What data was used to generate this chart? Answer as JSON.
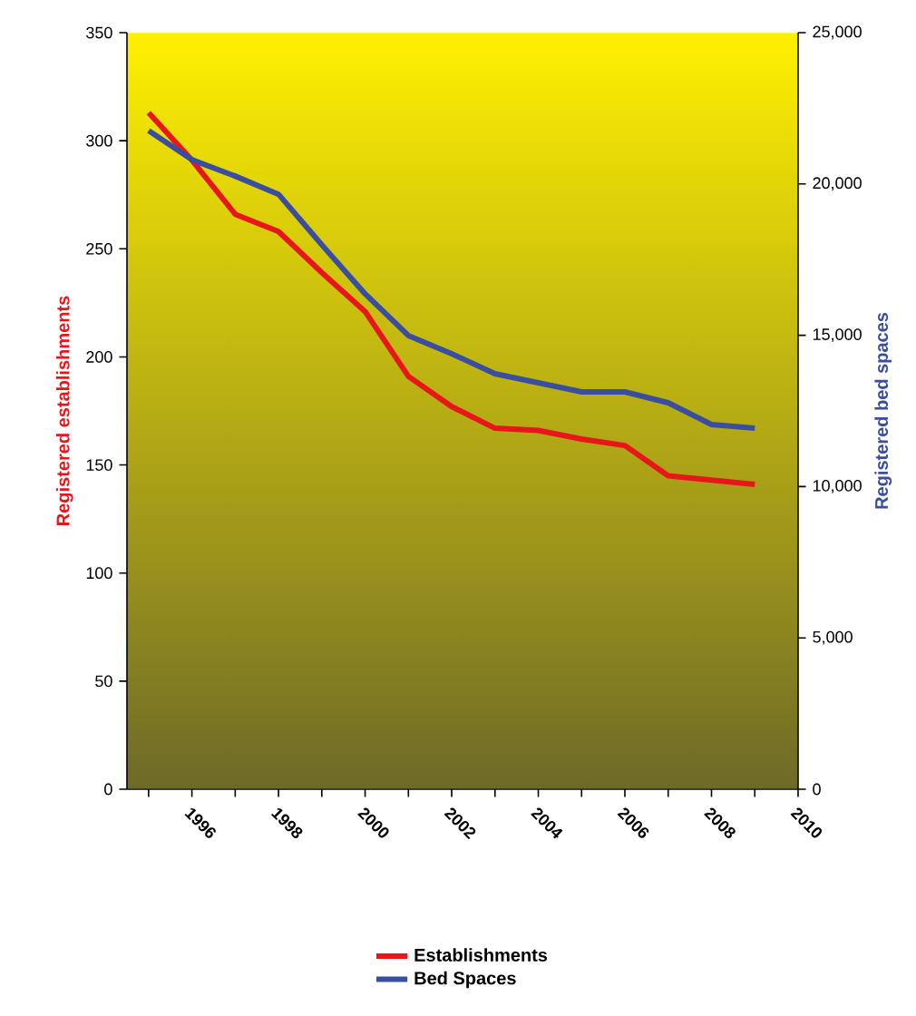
{
  "chart_data": {
    "type": "line",
    "x": [
      1995,
      1996,
      1997,
      1998,
      1999,
      2000,
      2001,
      2002,
      2003,
      2004,
      2005,
      2006,
      2007,
      2008,
      2009
    ],
    "series": [
      {
        "name": "Establishments",
        "color": "#e8151b",
        "values": [
          313,
          291,
          266,
          258,
          239,
          221,
          191,
          177,
          167,
          166,
          162,
          159,
          145,
          143,
          141
        ]
      },
      {
        "name": "Bed Spaces",
        "color": "#3a4ea0",
        "axis": "y2",
        "values": [
          21760,
          20800,
          20260,
          19660,
          17990,
          16370,
          14990,
          14390,
          13730,
          13430,
          13130,
          13130,
          12770,
          12050,
          11930
        ]
      }
    ],
    "ylabel": "Registered establishments",
    "y2label": "Registered bed spaces",
    "xlim": [
      1994.5,
      2010
    ],
    "xticks": [
      {
        "value": 1995,
        "label": null
      },
      1996,
      {
        "value": 1997,
        "label": null
      },
      1998,
      {
        "value": 1999,
        "label": null
      },
      2000,
      {
        "value": 2001,
        "label": null
      },
      2002,
      {
        "value": 2003,
        "label": null
      },
      2004,
      {
        "value": 2005,
        "label": null
      },
      2006,
      {
        "value": 2007,
        "label": null
      },
      2008,
      {
        "value": 2009,
        "label": null
      },
      2010
    ],
    "ylim": [
      0,
      350
    ],
    "yticks": [
      0,
      50,
      100,
      150,
      200,
      250,
      300,
      350
    ],
    "y2lim": [
      0,
      25000
    ],
    "y2ticks": [
      {
        "value": 0,
        "label": "0"
      },
      {
        "value": 5000,
        "label": "5,000"
      },
      {
        "value": 10000,
        "label": "10,000"
      },
      {
        "value": 15000,
        "label": "15,000"
      },
      {
        "value": 20000,
        "label": "20,000"
      },
      {
        "value": 25000,
        "label": "25,000"
      }
    ],
    "legend": "bottom",
    "grid": false,
    "marker": "none",
    "line_style": "solid"
  }
}
